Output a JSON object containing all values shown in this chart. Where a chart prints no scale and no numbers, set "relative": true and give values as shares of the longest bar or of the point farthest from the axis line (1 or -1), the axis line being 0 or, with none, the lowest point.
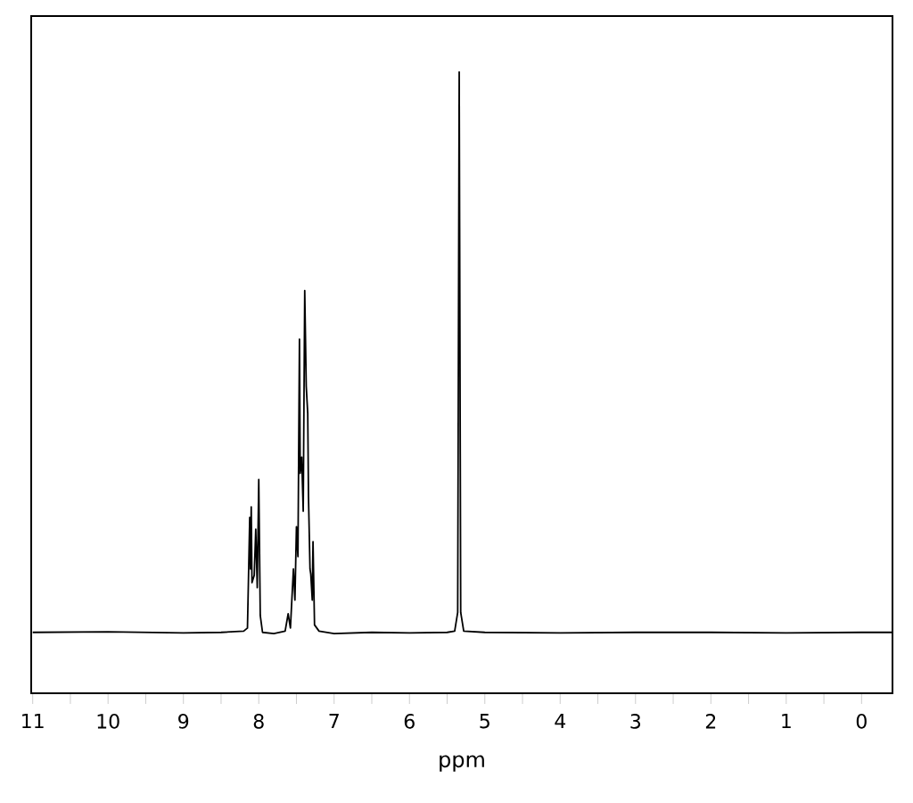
{
  "chart_data": {
    "type": "line",
    "xlabel": "ppm",
    "relative": true,
    "marker": "none",
    "line_style": "solid",
    "xlim": [
      11.02,
      -0.41
    ],
    "xticks": [
      11,
      {
        "value": 10.5,
        "label": null
      },
      10,
      {
        "value": 9.5,
        "label": null
      },
      9,
      {
        "value": 8.5,
        "label": null
      },
      8,
      {
        "value": 7.5,
        "label": null
      },
      7,
      {
        "value": 6.5,
        "label": null
      },
      6,
      {
        "value": 5.5,
        "label": null
      },
      5,
      {
        "value": 4.5,
        "label": null
      },
      4,
      {
        "value": 3.5,
        "label": null
      },
      3,
      {
        "value": 2.5,
        "label": null
      },
      2,
      {
        "value": 1.5,
        "label": null
      },
      1,
      {
        "value": 0.5,
        "label": null
      },
      0
    ],
    "series": [
      {
        "color": "#000000",
        "x": [
          11.0,
          10.0,
          9.0,
          8.5,
          8.2,
          8.15,
          8.12,
          8.11,
          8.1,
          8.09,
          8.06,
          8.04,
          8.02,
          8.0,
          7.98,
          7.95,
          7.8,
          7.65,
          7.61,
          7.58,
          7.54,
          7.52,
          7.5,
          7.48,
          7.46,
          7.45,
          7.43,
          7.41,
          7.39,
          7.37,
          7.35,
          7.34,
          7.32,
          7.31,
          7.29,
          7.28,
          7.26,
          7.2,
          7.0,
          6.5,
          6.0,
          5.5,
          5.4,
          5.36,
          5.34,
          5.32,
          5.28,
          5.0,
          4.0,
          3.0,
          2.0,
          1.0,
          0.0,
          -0.4
        ],
        "values": [
          0.098,
          0.099,
          0.097,
          0.098,
          0.1,
          0.105,
          0.283,
          0.2,
          0.3,
          0.178,
          0.19,
          0.264,
          0.17,
          0.344,
          0.125,
          0.098,
          0.096,
          0.1,
          0.128,
          0.105,
          0.2,
          0.15,
          0.268,
          0.22,
          0.57,
          0.354,
          0.38,
          0.293,
          0.648,
          0.494,
          0.45,
          0.316,
          0.2,
          0.192,
          0.15,
          0.244,
          0.11,
          0.1,
          0.096,
          0.098,
          0.097,
          0.098,
          0.1,
          0.13,
          1.0,
          0.13,
          0.1,
          0.098,
          0.097,
          0.098,
          0.098,
          0.097,
          0.098,
          0.098
        ]
      }
    ]
  }
}
